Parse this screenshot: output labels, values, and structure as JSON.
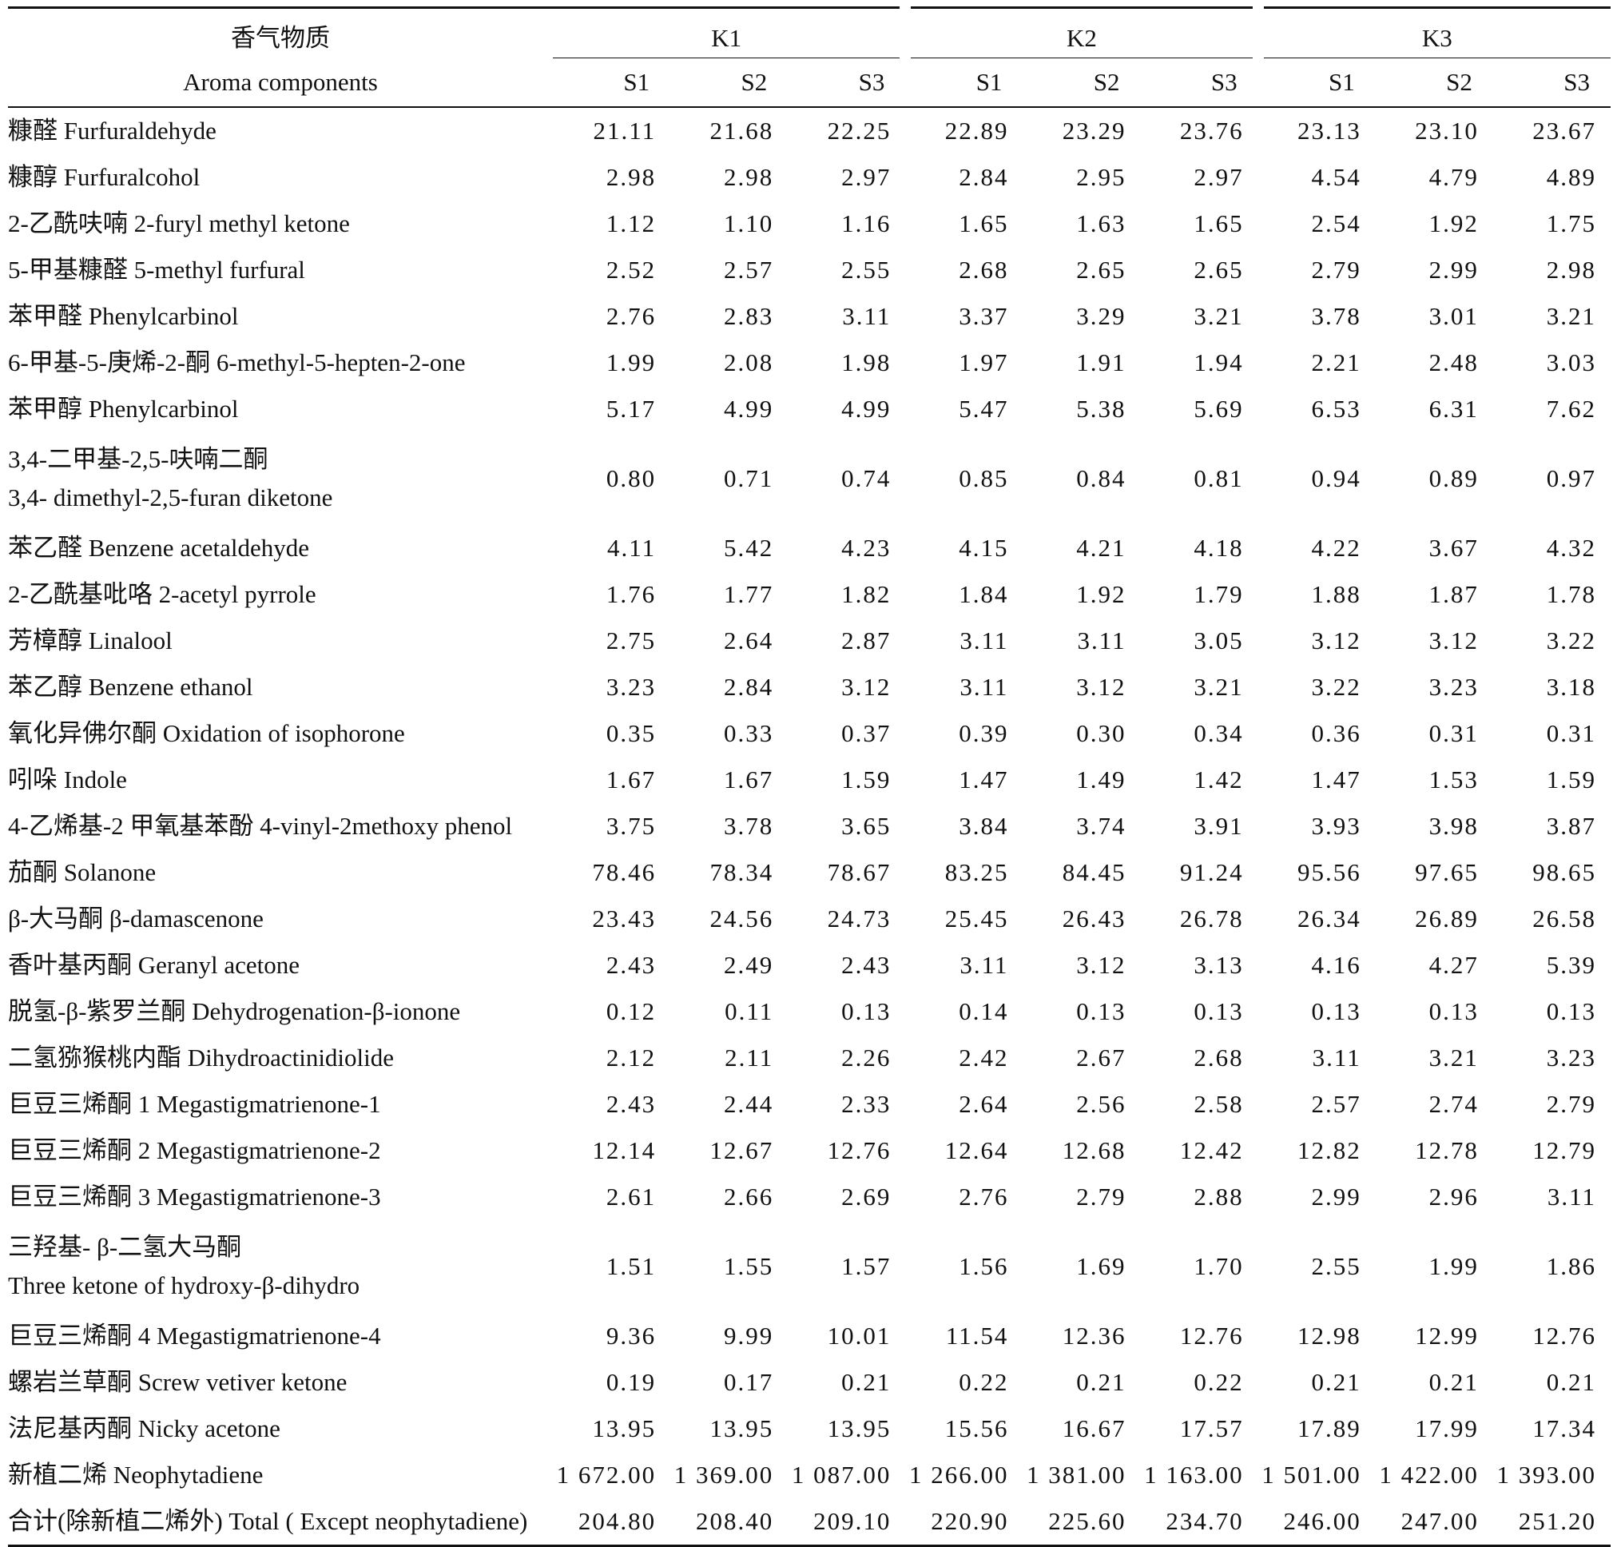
{
  "header": {
    "label_cn": "香气物质",
    "label_en": "Aroma components",
    "groups": [
      "K1",
      "K2",
      "K3"
    ],
    "subcols": [
      "S1",
      "S2",
      "S3",
      "S1",
      "S2",
      "S3",
      "S1",
      "S2",
      "S3"
    ]
  },
  "rows": [
    {
      "label": [
        "糠醛 Furfuraldehyde"
      ],
      "values": [
        "21.11",
        "21.68",
        "22.25",
        "22.89",
        "23.29",
        "23.76",
        "23.13",
        "23.10",
        "23.67"
      ]
    },
    {
      "label": [
        "糠醇 Furfuralcohol"
      ],
      "values": [
        "2.98",
        "2.98",
        "2.97",
        "2.84",
        "2.95",
        "2.97",
        "4.54",
        "4.79",
        "4.89"
      ]
    },
    {
      "label": [
        "2-乙酰呋喃 2-furyl methyl ketone"
      ],
      "values": [
        "1.12",
        "1.10",
        "1.16",
        "1.65",
        "1.63",
        "1.65",
        "2.54",
        "1.92",
        "1.75"
      ]
    },
    {
      "label": [
        "5-甲基糠醛 5-methyl furfural"
      ],
      "values": [
        "2.52",
        "2.57",
        "2.55",
        "2.68",
        "2.65",
        "2.65",
        "2.79",
        "2.99",
        "2.98"
      ]
    },
    {
      "label": [
        "苯甲醛 Phenylcarbinol"
      ],
      "values": [
        "2.76",
        "2.83",
        "3.11",
        "3.37",
        "3.29",
        "3.21",
        "3.78",
        "3.01",
        "3.21"
      ]
    },
    {
      "label": [
        "6-甲基-5-庚烯-2-酮 6-methyl-5-hepten-2-one"
      ],
      "values": [
        "1.99",
        "2.08",
        "1.98",
        "1.97",
        "1.91",
        "1.94",
        "2.21",
        "2.48",
        "3.03"
      ]
    },
    {
      "label": [
        "苯甲醇 Phenylcarbinol"
      ],
      "values": [
        "5.17",
        "4.99",
        "4.99",
        "5.47",
        "5.38",
        "5.69",
        "6.53",
        "6.31",
        "7.62"
      ]
    },
    {
      "label": [
        "3,4-二甲基-2,5-呋喃二酮",
        "3,4- dimethyl-2,5-furan diketone"
      ],
      "values": [
        "0.80",
        "0.71",
        "0.74",
        "0.85",
        "0.84",
        "0.81",
        "0.94",
        "0.89",
        "0.97"
      ]
    },
    {
      "label": [
        "苯乙醛 Benzene acetaldehyde"
      ],
      "values": [
        "4.11",
        "5.42",
        "4.23",
        "4.15",
        "4.21",
        "4.18",
        "4.22",
        "3.67",
        "4.32"
      ]
    },
    {
      "label": [
        "2-乙酰基吡咯 2-acetyl pyrrole"
      ],
      "values": [
        "1.76",
        "1.77",
        "1.82",
        "1.84",
        "1.92",
        "1.79",
        "1.88",
        "1.87",
        "1.78"
      ]
    },
    {
      "label": [
        "芳樟醇 Linalool"
      ],
      "values": [
        "2.75",
        "2.64",
        "2.87",
        "3.11",
        "3.11",
        "3.05",
        "3.12",
        "3.12",
        "3.22"
      ]
    },
    {
      "label": [
        "苯乙醇 Benzene ethanol"
      ],
      "values": [
        "3.23",
        "2.84",
        "3.12",
        "3.11",
        "3.12",
        "3.21",
        "3.22",
        "3.23",
        "3.18"
      ]
    },
    {
      "label": [
        "氧化异佛尔酮 Oxidation of isophorone"
      ],
      "values": [
        "0.35",
        "0.33",
        "0.37",
        "0.39",
        "0.30",
        "0.34",
        "0.36",
        "0.31",
        "0.31"
      ]
    },
    {
      "label": [
        "吲哚 Indole"
      ],
      "values": [
        "1.67",
        "1.67",
        "1.59",
        "1.47",
        "1.49",
        "1.42",
        "1.47",
        "1.53",
        "1.59"
      ]
    },
    {
      "label": [
        "4-乙烯基-2 甲氧基苯酚 4-vinyl-2methoxy phenol"
      ],
      "values": [
        "3.75",
        "3.78",
        "3.65",
        "3.84",
        "3.74",
        "3.91",
        "3.93",
        "3.98",
        "3.87"
      ]
    },
    {
      "label": [
        "茄酮 Solanone"
      ],
      "values": [
        "78.46",
        "78.34",
        "78.67",
        "83.25",
        "84.45",
        "91.24",
        "95.56",
        "97.65",
        "98.65"
      ]
    },
    {
      "label": [
        "β-大马酮 β-damascenone"
      ],
      "values": [
        "23.43",
        "24.56",
        "24.73",
        "25.45",
        "26.43",
        "26.78",
        "26.34",
        "26.89",
        "26.58"
      ]
    },
    {
      "label": [
        "香叶基丙酮 Geranyl acetone"
      ],
      "values": [
        "2.43",
        "2.49",
        "2.43",
        "3.11",
        "3.12",
        "3.13",
        "4.16",
        "4.27",
        "5.39"
      ]
    },
    {
      "label": [
        "脱氢-β-紫罗兰酮 Dehydrogenation-β-ionone"
      ],
      "values": [
        "0.12",
        "0.11",
        "0.13",
        "0.14",
        "0.13",
        "0.13",
        "0.13",
        "0.13",
        "0.13"
      ]
    },
    {
      "label": [
        "二氢猕猴桃内酯 Dihydroactinidiolide"
      ],
      "values": [
        "2.12",
        "2.11",
        "2.26",
        "2.42",
        "2.67",
        "2.68",
        "3.11",
        "3.21",
        "3.23"
      ]
    },
    {
      "label": [
        "巨豆三烯酮 1 Megastigmatrienone-1"
      ],
      "values": [
        "2.43",
        "2.44",
        "2.33",
        "2.64",
        "2.56",
        "2.58",
        "2.57",
        "2.74",
        "2.79"
      ]
    },
    {
      "label": [
        "巨豆三烯酮 2 Megastigmatrienone-2"
      ],
      "values": [
        "12.14",
        "12.67",
        "12.76",
        "12.64",
        "12.68",
        "12.42",
        "12.82",
        "12.78",
        "12.79"
      ]
    },
    {
      "label": [
        "巨豆三烯酮 3 Megastigmatrienone-3"
      ],
      "values": [
        "2.61",
        "2.66",
        "2.69",
        "2.76",
        "2.79",
        "2.88",
        "2.99",
        "2.96",
        "3.11"
      ]
    },
    {
      "label": [
        "三羟基- β-二氢大马酮",
        "Three ketone of hydroxy-β-dihydro"
      ],
      "values": [
        "1.51",
        "1.55",
        "1.57",
        "1.56",
        "1.69",
        "1.70",
        "2.55",
        "1.99",
        "1.86"
      ]
    },
    {
      "label": [
        "巨豆三烯酮 4 Megastigmatrienone-4"
      ],
      "values": [
        "9.36",
        "9.99",
        "10.01",
        "11.54",
        "12.36",
        "12.76",
        "12.98",
        "12.99",
        "12.76"
      ]
    },
    {
      "label": [
        "螺岩兰草酮 Screw vetiver ketone"
      ],
      "values": [
        "0.19",
        "0.17",
        "0.21",
        "0.22",
        "0.21",
        "0.22",
        "0.21",
        "0.21",
        "0.21"
      ]
    },
    {
      "label": [
        "法尼基丙酮 Nicky acetone"
      ],
      "values": [
        "13.95",
        "13.95",
        "13.95",
        "15.56",
        "16.67",
        "17.57",
        "17.89",
        "17.99",
        "17.34"
      ]
    },
    {
      "label": [
        "新植二烯 Neophytadiene"
      ],
      "values": [
        "1 672.00",
        "1 369.00",
        "1 087.00",
        "1 266.00",
        "1 381.00",
        "1 163.00",
        "1 501.00",
        "1 422.00",
        "1 393.00"
      ]
    },
    {
      "label": [
        "合计(除新植二烯外) Total ( Except neophytadiene)"
      ],
      "values": [
        "204.80",
        "208.40",
        "209.10",
        "220.90",
        "225.60",
        "234.70",
        "246.00",
        "247.00",
        "251.20"
      ]
    }
  ]
}
